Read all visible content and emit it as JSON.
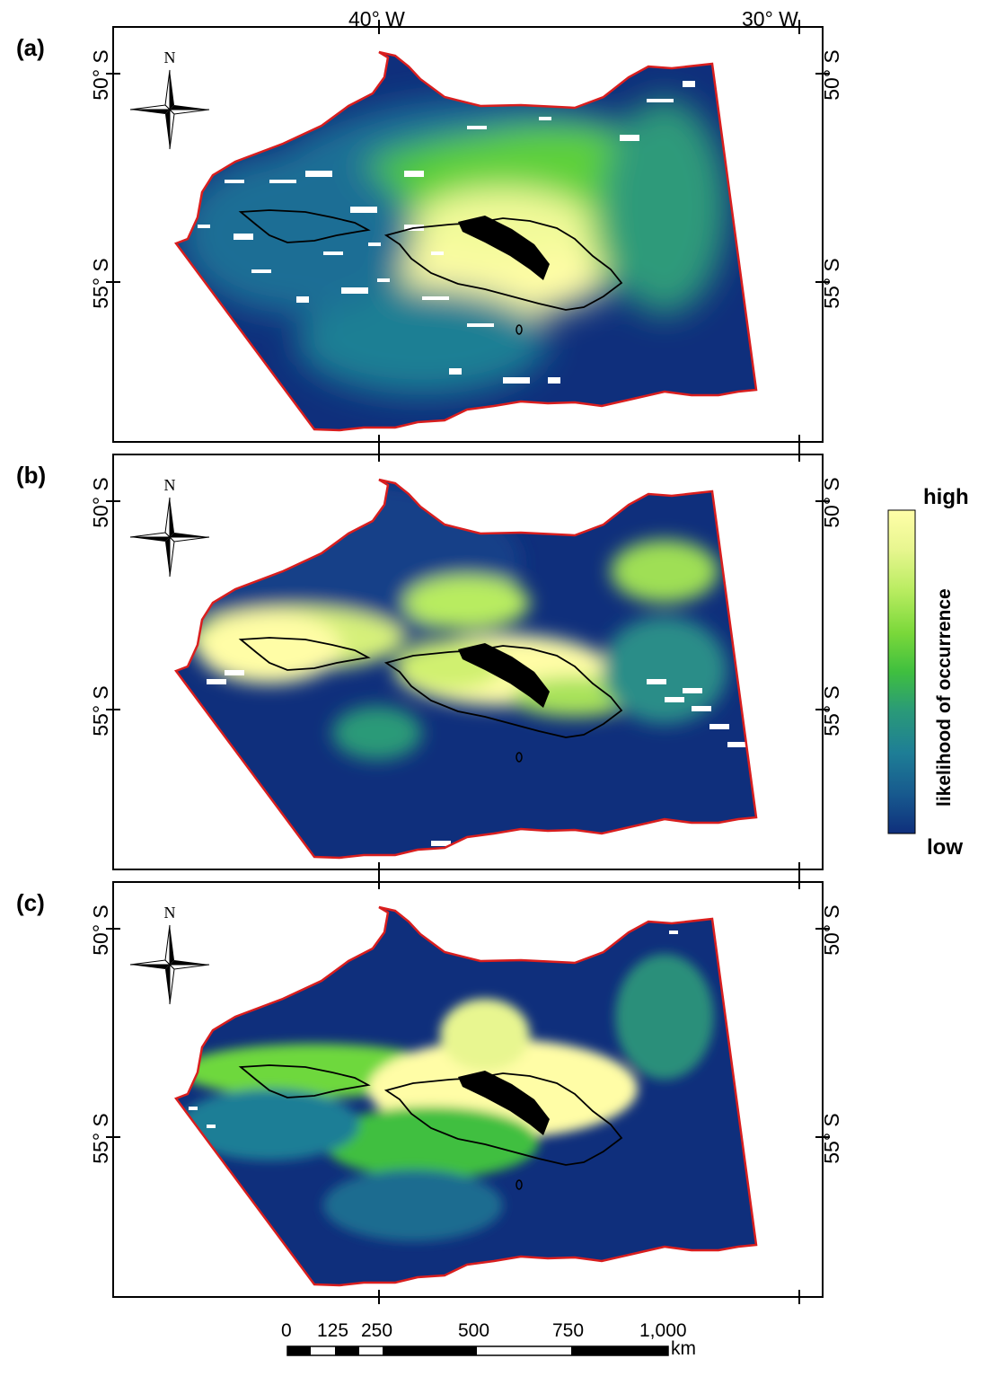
{
  "panels": [
    {
      "label": "(a)",
      "variant": "a"
    },
    {
      "label": "(b)",
      "variant": "b"
    },
    {
      "label": "(c)",
      "variant": "c"
    }
  ],
  "axes": {
    "lon_labels": [
      "40° W",
      "30° W"
    ],
    "lat_labels": [
      "50° S",
      "55° S"
    ]
  },
  "north_arrow": {
    "label": "N"
  },
  "legend": {
    "high": "high",
    "low": "low",
    "title": "likelihood of occurrence",
    "colors": [
      "#fffea8",
      "#e8f690",
      "#b8ec60",
      "#7ad83a",
      "#3fbf3f",
      "#2a9a78",
      "#1e7e96",
      "#17598e",
      "#0f2f7c"
    ]
  },
  "scale_bar": {
    "ticks": [
      "0",
      "125",
      "250",
      "500",
      "750",
      "1,000"
    ],
    "unit": "km"
  },
  "colors": {
    "outline": "#d91e1e",
    "deep_blue": "#0f2f7c",
    "mid_blue": "#1e6f96",
    "green": "#4dc83c",
    "yellow": "#fffda6"
  }
}
